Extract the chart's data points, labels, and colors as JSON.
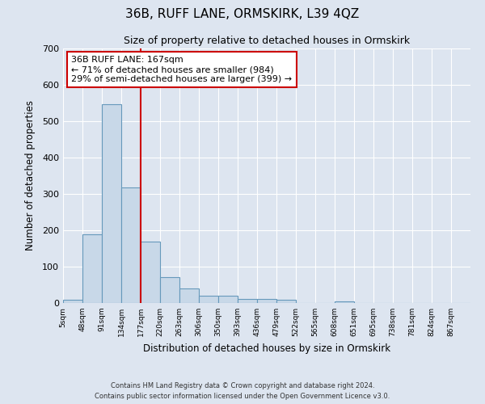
{
  "title1": "36B, RUFF LANE, ORMSKIRK, L39 4QZ",
  "title2": "Size of property relative to detached houses in Ormskirk",
  "xlabel": "Distribution of detached houses by size in Ormskirk",
  "ylabel": "Number of detached properties",
  "bin_labels": [
    "5sqm",
    "48sqm",
    "91sqm",
    "134sqm",
    "177sqm",
    "220sqm",
    "263sqm",
    "306sqm",
    "350sqm",
    "393sqm",
    "436sqm",
    "479sqm",
    "522sqm",
    "565sqm",
    "608sqm",
    "651sqm",
    "695sqm",
    "738sqm",
    "781sqm",
    "824sqm",
    "867sqm"
  ],
  "bar_values": [
    8,
    190,
    547,
    317,
    168,
    72,
    40,
    20,
    20,
    11,
    11,
    8,
    0,
    0,
    5,
    0,
    0,
    0,
    0,
    0,
    0
  ],
  "bar_color": "#c8d8e8",
  "bar_edge_color": "#6699bb",
  "vline_x": 4.0,
  "vline_color": "#cc0000",
  "annotation_text": "36B RUFF LANE: 167sqm\n← 71% of detached houses are smaller (984)\n29% of semi-detached houses are larger (399) →",
  "annotation_box_color": "#ffffff",
  "annotation_box_edge": "#cc0000",
  "ylim": [
    0,
    700
  ],
  "yticks": [
    0,
    100,
    200,
    300,
    400,
    500,
    600,
    700
  ],
  "footer1": "Contains HM Land Registry data © Crown copyright and database right 2024.",
  "footer2": "Contains public sector information licensed under the Open Government Licence v3.0.",
  "bg_color": "#dde5f0",
  "grid_color": "#ffffff"
}
